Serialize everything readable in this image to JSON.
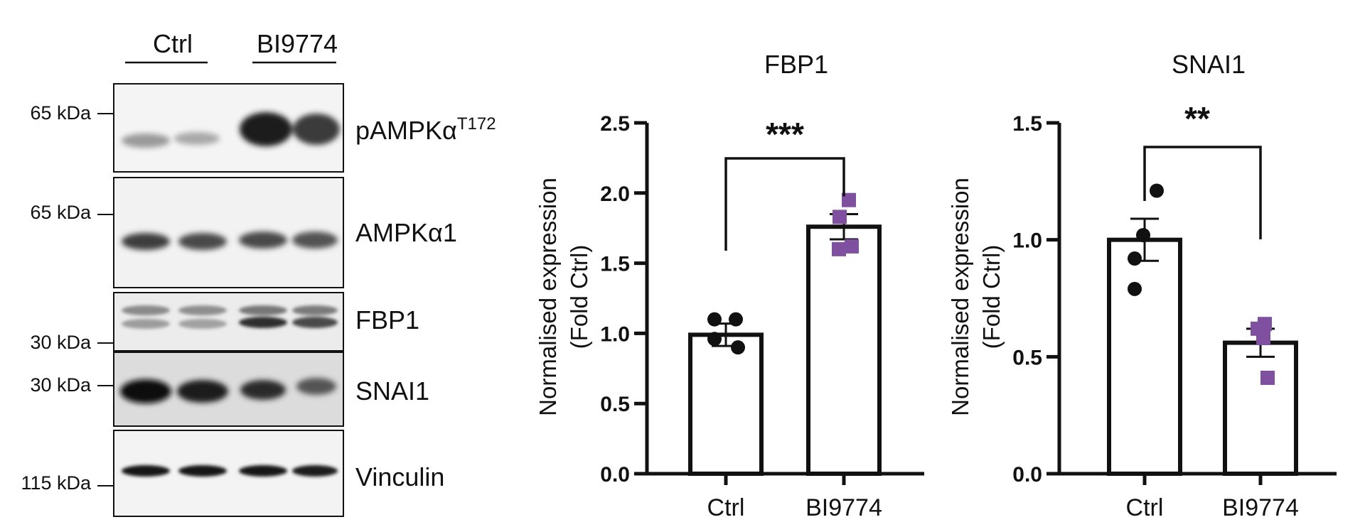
{
  "blot": {
    "groups": [
      "Ctrl",
      "BI9774"
    ],
    "panels": [
      {
        "label": "pAMPKα",
        "sup": "T172",
        "marker": "65 kDa"
      },
      {
        "label": "AMPKα1",
        "marker": "65 kDa"
      },
      {
        "label": "FBP1",
        "marker": "30 kDa"
      },
      {
        "label": "SNAI1",
        "marker": "30 kDa"
      },
      {
        "label": "Vinculin",
        "marker": "115 kDa"
      }
    ]
  },
  "chart_data": [
    {
      "type": "bar",
      "title": "FBP1",
      "ylabel": [
        "Normalised expression",
        "(Fold Ctrl)"
      ],
      "xlabel": "",
      "categories": [
        "Ctrl",
        "BI9774"
      ],
      "values": [
        0.99,
        1.76
      ],
      "errors": [
        0.08,
        0.09
      ],
      "ylim": [
        0,
        2.5
      ],
      "yticks": [
        "0.0",
        "0.5",
        "1.0",
        "1.5",
        "2.0",
        "2.5"
      ],
      "points": [
        [
          0.96,
          0.9,
          1.1,
          1.1
        ],
        [
          1.6,
          1.62,
          1.83,
          1.95
        ]
      ],
      "significance": "***",
      "colors": {
        "ctrl": "#111111",
        "treated": "#7f4fa0"
      }
    },
    {
      "type": "bar",
      "title": "SNAI1",
      "ylabel": [
        "Normalised expression",
        "(Fold Ctrl)"
      ],
      "xlabel": "",
      "categories": [
        "Ctrl",
        "BI9774"
      ],
      "values": [
        1.0,
        0.56
      ],
      "errors": [
        0.09,
        0.06
      ],
      "ylim": [
        0,
        1.5
      ],
      "yticks": [
        "0.0",
        "0.5",
        "1.0",
        "1.5"
      ],
      "points": [
        [
          0.79,
          0.92,
          1.02,
          1.21
        ],
        [
          0.41,
          0.58,
          0.62,
          0.64
        ]
      ],
      "significance": "**",
      "colors": {
        "ctrl": "#111111",
        "treated": "#7f4fa0"
      }
    }
  ]
}
